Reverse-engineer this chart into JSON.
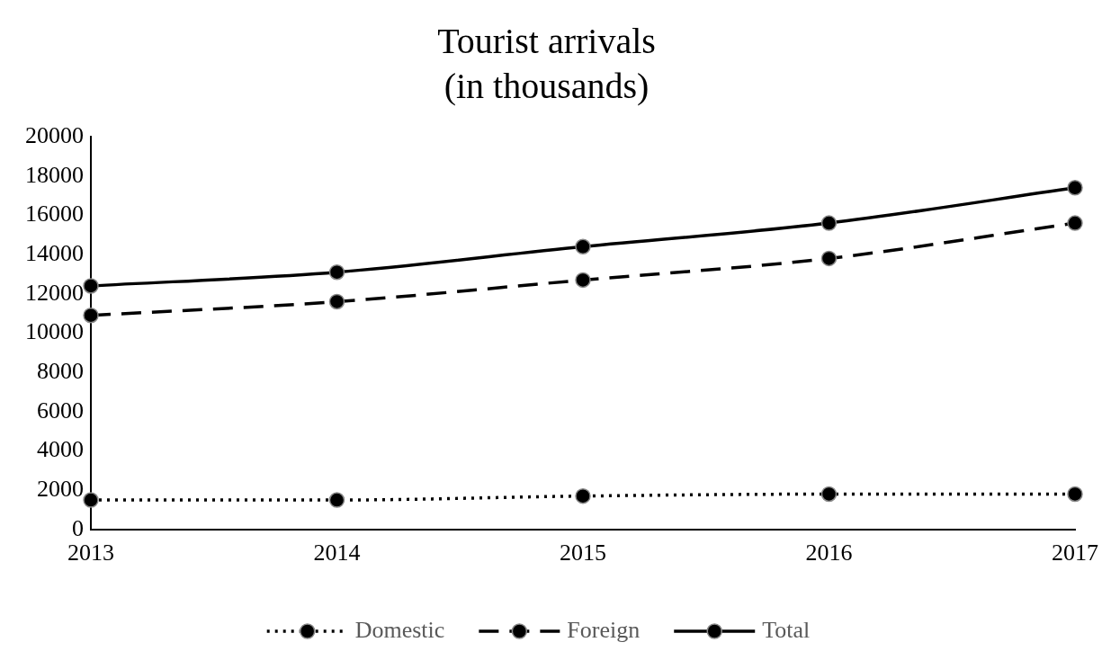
{
  "chart_data": {
    "type": "line",
    "title": "Tourist arrivals",
    "subtitle": "(in thousands)",
    "categories": [
      "2013",
      "2014",
      "2015",
      "2016",
      "2017"
    ],
    "series": [
      {
        "name": "Domestic",
        "color": "#000000",
        "line_style": "dotted",
        "values": [
          1500,
          1500,
          1700,
          1800,
          1800
        ]
      },
      {
        "name": "Foreign",
        "color": "#000000",
        "line_style": "dashed",
        "values": [
          10900,
          11600,
          12700,
          13800,
          15600
        ]
      },
      {
        "name": "Total",
        "color": "#000000",
        "line_style": "solid",
        "values": [
          12400,
          13100,
          14400,
          15600,
          17400
        ]
      }
    ],
    "ylim": [
      0,
      20000
    ],
    "yticks": [
      0,
      2000,
      4000,
      6000,
      8000,
      10000,
      12000,
      14000,
      16000,
      18000,
      20000
    ],
    "grid": false,
    "legend": "bottom",
    "marker": "circle"
  }
}
